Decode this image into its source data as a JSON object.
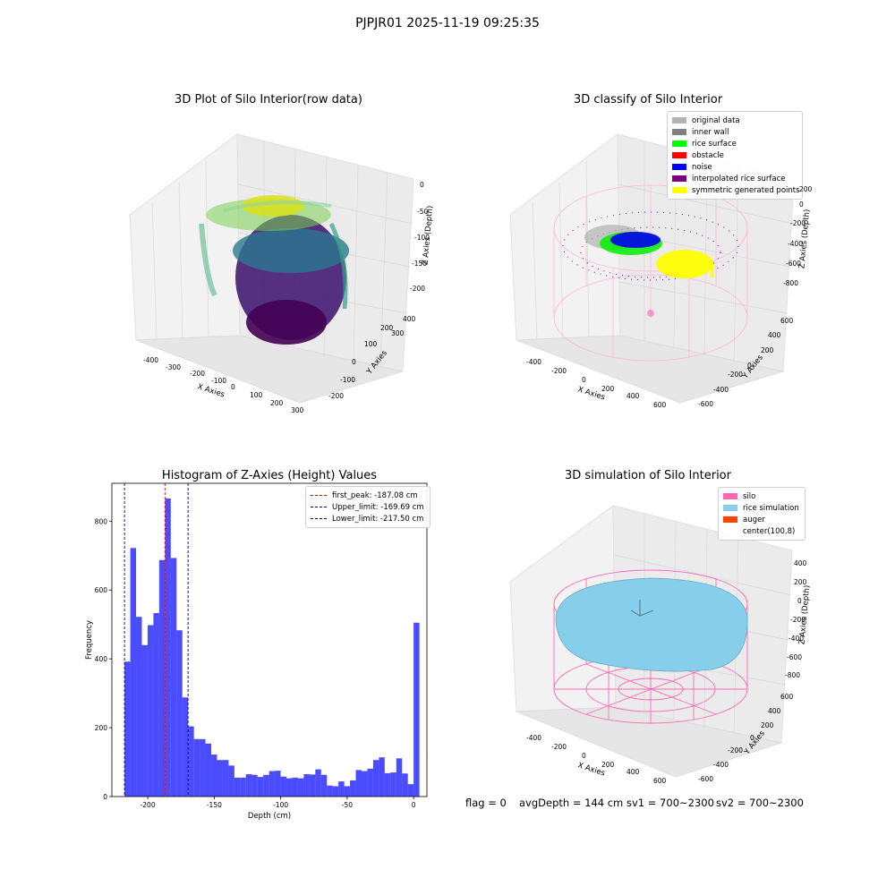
{
  "figure": {
    "suptitle": "PJPJR01 2025-11-19 09:25:35",
    "footer": {
      "flag": "flag = 0",
      "avg": "avgDepth = 144 cm",
      "sv1": "sv1 = 700~2300",
      "sv2": "sv2 = 700~2300"
    }
  },
  "chart_data": [
    {
      "type": "scatter",
      "projection": "3d",
      "title": "3D Plot of Silo Interior(row data)",
      "xlabel": "X Axies",
      "ylabel": "Y Axies",
      "zlabel": "Z Axies (Depth)",
      "xticks": [
        "-400",
        "-300",
        "-200",
        "-100",
        "0",
        "100",
        "200",
        "300"
      ],
      "yticks": [
        "-200",
        "-100",
        "0",
        "100",
        "200",
        "300",
        "400"
      ],
      "zticks": [
        "0",
        "-50",
        "-100",
        "-150",
        "-200"
      ],
      "colormap": "viridis",
      "grid": true
    },
    {
      "type": "scatter",
      "projection": "3d",
      "title": "3D classify of Silo Interior",
      "xlabel": "X Axies",
      "ylabel": "Y Axies",
      "zlabel": "Z Axies (Depth)",
      "xticks": [
        "-400",
        "-200",
        "0",
        "200",
        "400",
        "600"
      ],
      "yticks": [
        "-600",
        "-400",
        "-200",
        "0",
        "200",
        "400",
        "600"
      ],
      "zticks": [
        "200",
        "0",
        "-200",
        "-400",
        "-600",
        "-800"
      ],
      "legend_position": "top-right",
      "legend": [
        {
          "label": "original data",
          "color": "#b3b3b3"
        },
        {
          "label": "inner wall",
          "color": "#808080"
        },
        {
          "label": "rice surface",
          "color": "#00ff00"
        },
        {
          "label": "obstacle",
          "color": "#ff0000"
        },
        {
          "label": "noise",
          "color": "#0000ff"
        },
        {
          "label": "interpolated rice surface",
          "color": "#800080"
        },
        {
          "label": "symmetric generated points",
          "color": "#ffff00"
        }
      ],
      "grid": true
    },
    {
      "type": "bar",
      "subtype": "histogram",
      "title": "Histogram of Z-Axies (Height) Values",
      "xlabel": "Depth (cm)",
      "ylabel": "Frequency",
      "xlim": [
        -227,
        10
      ],
      "ylim": [
        0,
        910
      ],
      "xticks": [
        -200,
        -150,
        -100,
        -50,
        0
      ],
      "yticks": [
        0,
        200,
        400,
        600,
        800
      ],
      "bar_color": "#0000ff",
      "bin_edges_start": -217.5,
      "bin_width": 4.35,
      "values": [
        392,
        722,
        522,
        440,
        498,
        533,
        687,
        866,
        693,
        483,
        288,
        204,
        167,
        167,
        154,
        122,
        106,
        106,
        90,
        55,
        55,
        65,
        63,
        57,
        63,
        74,
        75,
        58,
        53,
        55,
        53,
        65,
        64,
        79,
        63,
        32,
        30,
        44,
        30,
        47,
        77,
        74,
        81,
        106,
        114,
        68,
        70,
        111,
        67,
        36,
        505
      ],
      "vlines": [
        {
          "label": "first_peak: -187.08 cm",
          "x": -187.08,
          "color": "#ff0000"
        },
        {
          "label": "Upper_limit: -169.69 cm",
          "x": -169.69,
          "color": "#00008b"
        },
        {
          "label": "Lower_limit: -217.50 cm",
          "x": -217.5,
          "color": "#00008b"
        }
      ],
      "legend_position": "top-right",
      "grid": false
    },
    {
      "type": "surface",
      "projection": "3d",
      "title": "3D simulation of Silo Interior",
      "xlabel": "X Axies",
      "ylabel": "Y Axies",
      "zlabel": "Z Axies (Depth)",
      "xticks": [
        "-400",
        "-200",
        "0",
        "200",
        "400",
        "600"
      ],
      "yticks": [
        "-600",
        "-400",
        "-200",
        "0",
        "200",
        "400",
        "600"
      ],
      "zticks": [
        "400",
        "200",
        "0",
        "-200",
        "-400",
        "-600",
        "-800"
      ],
      "legend_position": "top-right",
      "legend": [
        {
          "label": "silo",
          "color": "#ff69b4"
        },
        {
          "label": "rice simulation",
          "color": "#87ceeb"
        },
        {
          "label": "auger",
          "color": "#ff4500"
        },
        {
          "label": "center(100,8)",
          "color": ""
        }
      ],
      "grid": true
    }
  ]
}
